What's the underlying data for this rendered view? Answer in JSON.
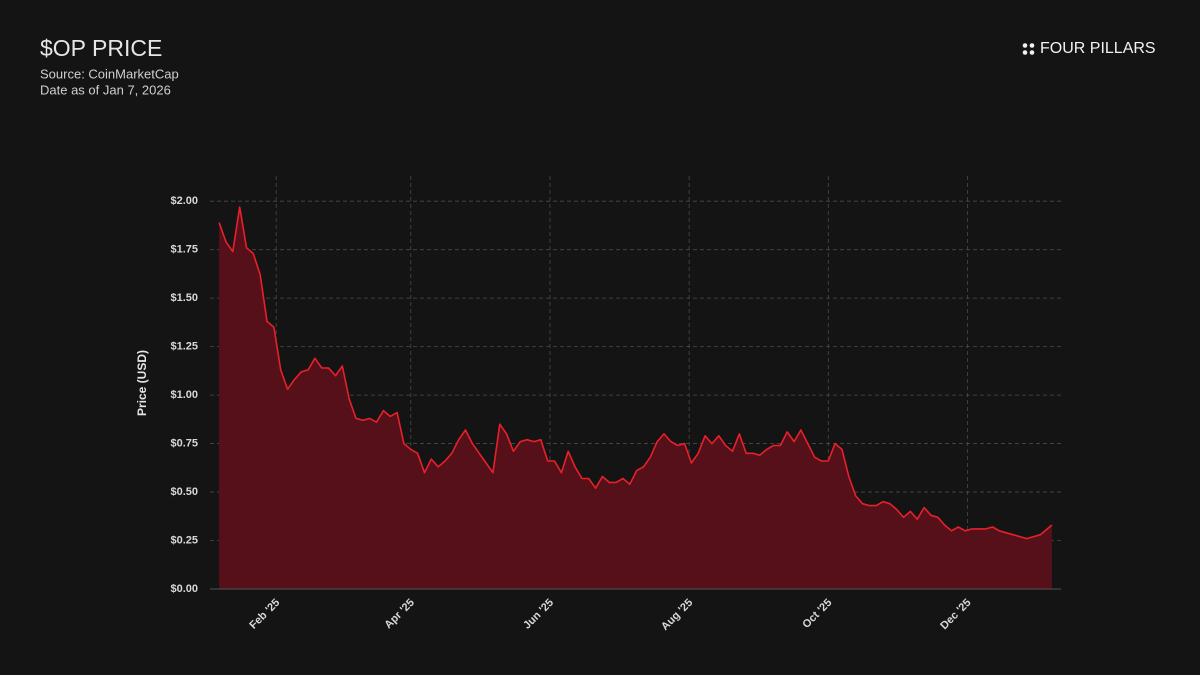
{
  "logo": "FOUR PILLARS",
  "chart_data": {
    "type": "area",
    "title": "$OP PRICE",
    "subtitle": [
      "Source: CoinMarketCap",
      "Date as of Jan 7, 2026"
    ],
    "y_label": "Price (USD)",
    "color": "#e8202a",
    "fill": "#5a1019",
    "grid": true,
    "x": [
      "2025-01-07",
      "2025-01-10",
      "2025-01-13",
      "2025-01-16",
      "2025-01-19",
      "2025-01-22",
      "2025-01-25",
      "2025-01-28",
      "2025-01-31",
      "2025-02-03",
      "2025-02-06",
      "2025-02-09",
      "2025-02-12",
      "2025-02-15",
      "2025-02-18",
      "2025-02-21",
      "2025-02-24",
      "2025-02-27",
      "2025-03-02",
      "2025-03-05",
      "2025-03-08",
      "2025-03-11",
      "2025-03-14",
      "2025-03-17",
      "2025-03-20",
      "2025-03-23",
      "2025-03-26",
      "2025-03-29",
      "2025-04-01",
      "2025-04-04",
      "2025-04-07",
      "2025-04-10",
      "2025-04-13",
      "2025-04-16",
      "2025-04-19",
      "2025-04-22",
      "2025-04-25",
      "2025-04-28",
      "2025-05-01",
      "2025-05-04",
      "2025-05-07",
      "2025-05-10",
      "2025-05-13",
      "2025-05-16",
      "2025-05-19",
      "2025-05-22",
      "2025-05-25",
      "2025-05-28",
      "2025-05-31",
      "2025-06-03",
      "2025-06-06",
      "2025-06-09",
      "2025-06-12",
      "2025-06-15",
      "2025-06-18",
      "2025-06-21",
      "2025-06-24",
      "2025-06-27",
      "2025-06-30",
      "2025-07-03",
      "2025-07-06",
      "2025-07-09",
      "2025-07-12",
      "2025-07-15",
      "2025-07-18",
      "2025-07-21",
      "2025-07-24",
      "2025-07-27",
      "2025-07-30",
      "2025-08-02",
      "2025-08-05",
      "2025-08-08",
      "2025-08-11",
      "2025-08-14",
      "2025-08-17",
      "2025-08-20",
      "2025-08-23",
      "2025-08-26",
      "2025-08-29",
      "2025-09-01",
      "2025-09-04",
      "2025-09-07",
      "2025-09-10",
      "2025-09-13",
      "2025-09-16",
      "2025-09-19",
      "2025-09-22",
      "2025-09-25",
      "2025-09-28",
      "2025-10-01",
      "2025-10-04",
      "2025-10-07",
      "2025-10-10",
      "2025-10-13",
      "2025-10-16",
      "2025-10-19",
      "2025-10-22",
      "2025-10-25",
      "2025-10-28",
      "2025-10-31",
      "2025-11-03",
      "2025-11-06",
      "2025-11-09",
      "2025-11-12",
      "2025-11-15",
      "2025-11-18",
      "2025-11-21",
      "2025-11-24",
      "2025-11-27",
      "2025-11-30",
      "2025-12-03",
      "2025-12-06",
      "2025-12-09",
      "2025-12-12",
      "2025-12-15",
      "2025-12-18",
      "2025-12-21",
      "2025-12-24",
      "2025-12-27",
      "2025-12-30",
      "2026-01-02",
      "2026-01-05",
      "2026-01-07"
    ],
    "values": [
      1.89,
      1.79,
      1.74,
      1.97,
      1.76,
      1.73,
      1.62,
      1.38,
      1.35,
      1.13,
      1.03,
      1.08,
      1.12,
      1.13,
      1.19,
      1.14,
      1.14,
      1.1,
      1.15,
      0.98,
      0.88,
      0.87,
      0.88,
      0.86,
      0.92,
      0.89,
      0.91,
      0.75,
      0.72,
      0.7,
      0.6,
      0.67,
      0.63,
      0.66,
      0.7,
      0.77,
      0.82,
      0.75,
      0.7,
      0.65,
      0.6,
      0.85,
      0.8,
      0.71,
      0.76,
      0.77,
      0.76,
      0.77,
      0.66,
      0.66,
      0.6,
      0.71,
      0.63,
      0.57,
      0.57,
      0.52,
      0.58,
      0.55,
      0.55,
      0.57,
      0.54,
      0.61,
      0.63,
      0.68,
      0.76,
      0.8,
      0.76,
      0.74,
      0.75,
      0.65,
      0.7,
      0.79,
      0.75,
      0.79,
      0.74,
      0.71,
      0.8,
      0.7,
      0.7,
      0.69,
      0.72,
      0.74,
      0.74,
      0.81,
      0.76,
      0.82,
      0.75,
      0.68,
      0.66,
      0.66,
      0.75,
      0.72,
      0.58,
      0.48,
      0.44,
      0.43,
      0.43,
      0.45,
      0.44,
      0.41,
      0.37,
      0.4,
      0.36,
      0.42,
      0.38,
      0.37,
      0.33,
      0.3,
      0.32,
      0.3,
      0.31,
      0.31,
      0.31,
      0.32,
      0.3,
      0.29,
      0.28,
      0.27,
      0.26,
      0.27,
      0.28,
      0.31,
      0.33
    ],
    "xlim": [
      "2025-01-03",
      "2026-01-11"
    ],
    "xticks": [
      {
        "value": "2025-02-01",
        "label": "Feb '25"
      },
      {
        "value": "2025-04-01",
        "label": "Apr '25"
      },
      {
        "value": "2025-06-01",
        "label": "Jun '25"
      },
      {
        "value": "2025-08-01",
        "label": "Aug '25"
      },
      {
        "value": "2025-10-01",
        "label": "Oct '25"
      },
      {
        "value": "2025-12-01",
        "label": "Dec '25"
      }
    ],
    "ylim": [
      0,
      2.13
    ],
    "yticks": [
      {
        "value": 0,
        "label": "$0.00"
      },
      {
        "value": 0.25,
        "label": "$0.25"
      },
      {
        "value": 0.5,
        "label": "$0.50"
      },
      {
        "value": 0.75,
        "label": "$0.75"
      },
      {
        "value": 1,
        "label": "$1.00"
      },
      {
        "value": 1.25,
        "label": "$1.25"
      },
      {
        "value": 1.5,
        "label": "$1.50"
      },
      {
        "value": 1.75,
        "label": "$1.75"
      },
      {
        "value": 2,
        "label": "$2.00"
      }
    ]
  }
}
